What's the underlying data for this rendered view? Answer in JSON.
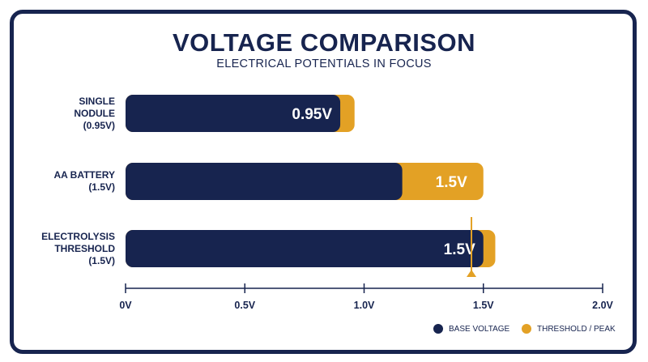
{
  "title": "VOLTAGE COMPARISON",
  "subtitle": "ELECTRICAL POTENTIALS IN FOCUS",
  "colors": {
    "base": "#17244f",
    "threshold": "#e3a125",
    "text": "#17244f"
  },
  "legend": {
    "base_label": "BASE VOLTAGE",
    "threshold_label": "THRESHOLD / PEAK"
  },
  "chart_data": {
    "type": "bar",
    "orientation": "horizontal",
    "stacked": true,
    "categories": [
      [
        "SINGLE",
        "NODULE",
        "(0.95V)"
      ],
      [
        "AA BATTERY",
        "(1.5V)"
      ],
      [
        "ELECTROLYSIS",
        "THRESHOLD",
        "(1.5V)"
      ]
    ],
    "series": [
      {
        "name": "BASE VOLTAGE",
        "values": [
          0.9,
          1.16,
          1.5
        ]
      },
      {
        "name": "THRESHOLD / PEAK",
        "values": [
          0.06,
          0.34,
          0.05
        ]
      }
    ],
    "data_labels": [
      "0.95V",
      "1.5V",
      "1.5V"
    ],
    "xlim": [
      0,
      2.0
    ],
    "xticks": [
      0,
      0.5,
      1.0,
      1.5,
      2.0
    ],
    "xtick_labels": [
      "0V",
      "0.5V",
      "1.0V",
      "1.5V",
      "2.0V"
    ],
    "marker_value": 1.45,
    "grid": false,
    "legend_position": "bottom-right"
  }
}
